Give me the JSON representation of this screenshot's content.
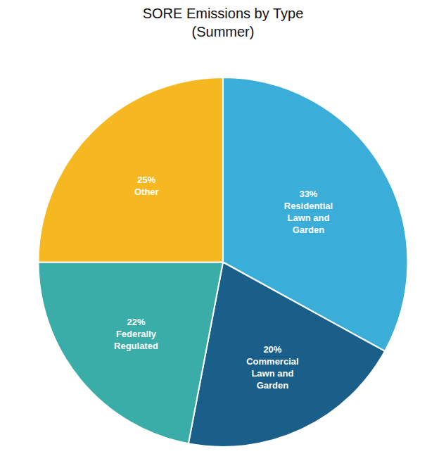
{
  "chart_data": {
    "type": "pie",
    "title": "SORE Emissions by Type\n(Summer)",
    "categories": [
      "Residential\nLawn and\nGarden",
      "Commercial\nLawn and\nGarden",
      "Federally\nRegulated",
      "Other"
    ],
    "values": [
      33,
      20,
      22,
      25
    ],
    "value_labels": [
      "33%",
      "20%",
      "22%",
      "25%"
    ],
    "colors": [
      "#3AAED8",
      "#1A5F8A",
      "#3AADA8",
      "#F5B820"
    ],
    "data_labels": true
  }
}
